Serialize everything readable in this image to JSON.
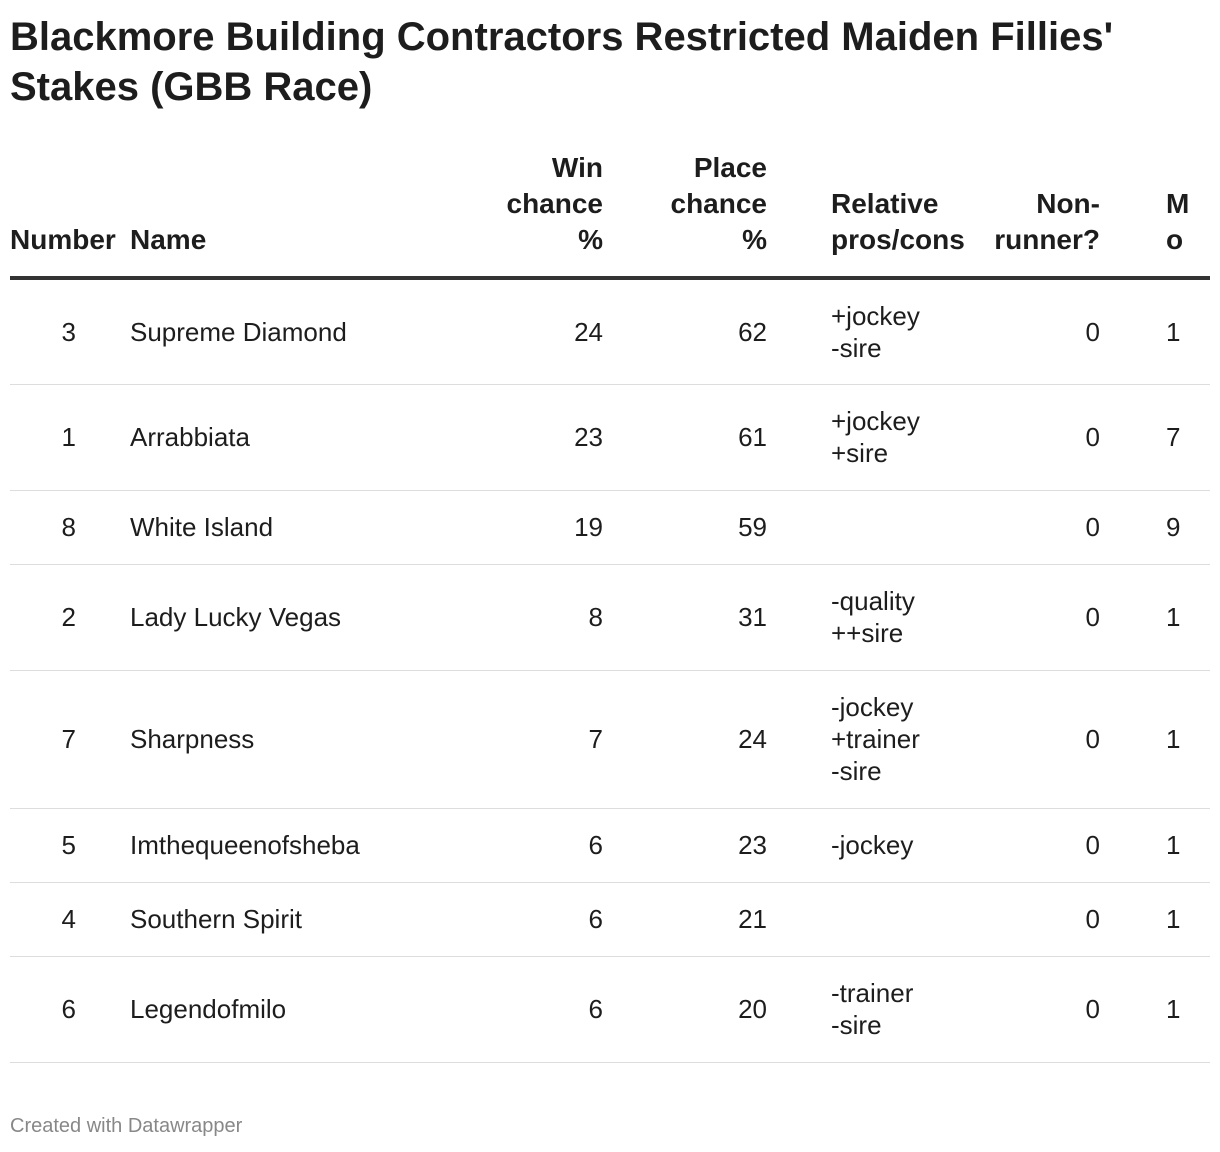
{
  "title": "Blackmore Building Contractors Restricted Maiden Fillies' Stakes (GBB Race)",
  "footer": "Created with Datawrapper",
  "chart_data": {
    "type": "table",
    "columns": [
      "Number",
      "Name",
      "Win chance %",
      "Place chance %",
      "Relative pros/cons",
      "Non-runner?",
      "M o"
    ],
    "header_lines": {
      "number": [
        "Number"
      ],
      "name": [
        "Name"
      ],
      "win": [
        "Win",
        "chance",
        "%"
      ],
      "place": [
        "Place",
        "chance",
        "%"
      ],
      "rel": [
        "Relative",
        "pros/cons"
      ],
      "nr": [
        "Non-",
        "runner?"
      ],
      "extra": [
        "M",
        "o"
      ]
    },
    "rows": [
      {
        "number": "3",
        "name": "Supreme Diamond",
        "win": "24",
        "place": "62",
        "pros_cons": [
          "+jockey",
          "-sire"
        ],
        "non_runner": "0",
        "extra": "1",
        "height": 106
      },
      {
        "number": "1",
        "name": "Arrabbiata",
        "win": "23",
        "place": "61",
        "pros_cons": [
          "+jockey",
          "+sire"
        ],
        "non_runner": "0",
        "extra": "7",
        "height": 106
      },
      {
        "number": "8",
        "name": "White Island",
        "win": "19",
        "place": "59",
        "pros_cons": [],
        "non_runner": "0",
        "extra": "9",
        "height": 74
      },
      {
        "number": "2",
        "name": "Lady Lucky Vegas",
        "win": "8",
        "place": "31",
        "pros_cons": [
          "-quality",
          "++sire"
        ],
        "non_runner": "0",
        "extra": "1",
        "height": 106
      },
      {
        "number": "7",
        "name": "Sharpness",
        "win": "7",
        "place": "24",
        "pros_cons": [
          "-jockey",
          "+trainer",
          "-sire"
        ],
        "non_runner": "0",
        "extra": "1",
        "height": 138
      },
      {
        "number": "5",
        "name": "Imthequeenofsheba",
        "win": "6",
        "place": "23",
        "pros_cons": [
          "-jockey"
        ],
        "non_runner": "0",
        "extra": "1",
        "height": 74
      },
      {
        "number": "4",
        "name": "Southern Spirit",
        "win": "6",
        "place": "21",
        "pros_cons": [],
        "non_runner": "0",
        "extra": "1",
        "height": 74
      },
      {
        "number": "6",
        "name": "Legendofmilo",
        "win": "6",
        "place": "20",
        "pros_cons": [
          "-trainer",
          "-sire"
        ],
        "non_runner": "0",
        "extra": "1",
        "height": 106
      }
    ]
  }
}
